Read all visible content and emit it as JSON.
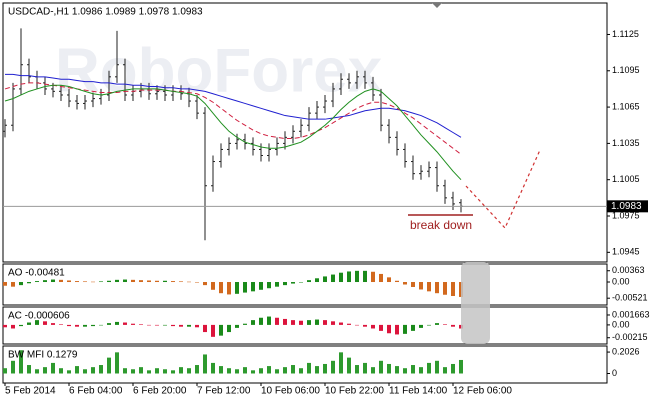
{
  "chart_data": [
    {
      "type": "ohlc",
      "title": "USDCAD-,H1 1.0986 1.0989 1.0978 1.0983",
      "watermark": "RoboForex",
      "annotation": "break down",
      "color": "#222222",
      "categories": [
        "5 Feb 2014",
        null,
        null,
        null,
        null,
        null,
        null,
        null,
        "6 Feb 04:00",
        null,
        null,
        null,
        null,
        null,
        null,
        null,
        "6 Feb 20:00",
        null,
        null,
        null,
        null,
        null,
        null,
        null,
        "7 Feb 12:00",
        null,
        null,
        null,
        null,
        null,
        null,
        null,
        "10 Feb 06:00",
        null,
        null,
        null,
        null,
        null,
        null,
        null,
        "10 Feb 22:00",
        null,
        null,
        null,
        null,
        null,
        null,
        null,
        "11 Feb 14:00",
        null,
        null,
        null,
        null,
        null,
        null,
        null,
        "12 Feb 06:00",
        null
      ],
      "open": [
        1.1045,
        1.105,
        1.108,
        1.11,
        1.109,
        1.1085,
        1.108,
        1.1078,
        1.1075,
        1.107,
        1.1068,
        1.107,
        1.1072,
        1.1075,
        1.109,
        1.11,
        1.1075,
        1.1078,
        1.108,
        1.1076,
        1.1078,
        1.1075,
        1.1078,
        1.1076,
        1.107,
        1.106,
        1.1,
        1.102,
        1.103,
        1.1035,
        1.1038,
        1.1035,
        1.103,
        1.1025,
        1.103,
        1.1035,
        1.104,
        1.1045,
        1.105,
        1.106,
        1.1065,
        1.107,
        1.108,
        1.1088,
        1.1085,
        1.109,
        1.1085,
        1.1075,
        1.105,
        1.104,
        1.103,
        1.102,
        1.101,
        1.1012,
        1.1015,
        1.1,
        1.099,
        1.0986
      ],
      "high": [
        1.1055,
        1.1085,
        1.113,
        1.1105,
        1.1095,
        1.109,
        1.1085,
        1.1083,
        1.108,
        1.1075,
        1.1075,
        1.1077,
        1.108,
        1.1095,
        1.1128,
        1.1105,
        1.1083,
        1.1085,
        1.1085,
        1.1083,
        1.1083,
        1.1083,
        1.1083,
        1.1081,
        1.1075,
        1.1065,
        1.1025,
        1.1035,
        1.104,
        1.1043,
        1.1043,
        1.104,
        1.1035,
        1.1035,
        1.104,
        1.1045,
        1.105,
        1.1055,
        1.1065,
        1.107,
        1.1075,
        1.1085,
        1.1093,
        1.1093,
        1.1095,
        1.1095,
        1.109,
        1.108,
        1.1055,
        1.1045,
        1.1035,
        1.1025,
        1.1017,
        1.102,
        1.102,
        1.1005,
        1.0995,
        1.0989
      ],
      "low": [
        1.104,
        1.1045,
        1.1075,
        1.1085,
        1.108,
        1.1075,
        1.1073,
        1.107,
        1.1065,
        1.1063,
        1.1063,
        1.1065,
        1.1067,
        1.107,
        1.1085,
        1.107,
        1.107,
        1.1073,
        1.1071,
        1.1071,
        1.107,
        1.107,
        1.1071,
        1.1065,
        1.1055,
        1.0955,
        1.0995,
        1.1015,
        1.1025,
        1.103,
        1.103,
        1.1025,
        1.102,
        1.102,
        1.1025,
        1.103,
        1.1035,
        1.104,
        1.1045,
        1.1055,
        1.106,
        1.1065,
        1.1075,
        1.108,
        1.108,
        1.108,
        1.107,
        1.1045,
        1.1035,
        1.1025,
        1.1015,
        1.1005,
        1.1005,
        1.1007,
        1.0995,
        1.0985,
        1.098,
        1.0978
      ],
      "close": [
        1.105,
        1.108,
        1.11,
        1.109,
        1.1085,
        1.108,
        1.1078,
        1.1075,
        1.107,
        1.1068,
        1.107,
        1.1072,
        1.1075,
        1.109,
        1.11,
        1.1075,
        1.1078,
        1.108,
        1.1076,
        1.1078,
        1.1075,
        1.1078,
        1.1076,
        1.107,
        1.106,
        1.1,
        1.102,
        1.103,
        1.1035,
        1.1038,
        1.1035,
        1.103,
        1.1025,
        1.103,
        1.1035,
        1.104,
        1.1045,
        1.105,
        1.106,
        1.1065,
        1.107,
        1.108,
        1.1088,
        1.1085,
        1.109,
        1.1085,
        1.1075,
        1.105,
        1.104,
        1.103,
        1.102,
        1.101,
        1.1012,
        1.1015,
        1.1,
        1.099,
        1.0985,
        1.0983
      ],
      "moving_averages": [
        {
          "color": "#2020d0",
          "dashed": false,
          "values": [
            1.1092,
            1.1092,
            1.1091,
            1.1091,
            1.109,
            1.109,
            1.1089,
            1.1088,
            1.1088,
            1.1087,
            1.1086,
            1.1086,
            1.1085,
            1.1085,
            1.1084,
            1.1084,
            1.1083,
            1.1083,
            1.1082,
            1.1082,
            1.1081,
            1.1081,
            1.108,
            1.108,
            1.1079,
            1.1078,
            1.1076,
            1.1074,
            1.1072,
            1.107,
            1.1068,
            1.1066,
            1.1064,
            1.1062,
            1.106,
            1.1058,
            1.1057,
            1.1056,
            1.1055,
            1.1055,
            1.1055,
            1.1056,
            1.1057,
            1.1058,
            1.106,
            1.1062,
            1.1063,
            1.1064,
            1.1064,
            1.1063,
            1.1062,
            1.106,
            1.1058,
            1.1055,
            1.1052,
            1.1048,
            1.1044,
            1.104
          ]
        },
        {
          "color": "#d02040",
          "dashed": true,
          "values": [
            1.108,
            1.1082,
            1.1084,
            1.1085,
            1.1085,
            1.1084,
            1.1083,
            1.1082,
            1.1081,
            1.108,
            1.1079,
            1.1078,
            1.1077,
            1.1077,
            1.1077,
            1.1078,
            1.1078,
            1.1079,
            1.1079,
            1.1079,
            1.1079,
            1.1078,
            1.1078,
            1.1077,
            1.1076,
            1.1073,
            1.1069,
            1.1064,
            1.1059,
            1.1054,
            1.105,
            1.1046,
            1.1043,
            1.1041,
            1.104,
            1.1039,
            1.1039,
            1.104,
            1.1042,
            1.1045,
            1.1048,
            1.1052,
            1.1056,
            1.106,
            1.1064,
            1.1067,
            1.1069,
            1.1069,
            1.1067,
            1.1064,
            1.106,
            1.1056,
            1.1051,
            1.1046,
            1.1041,
            1.1036,
            1.1031,
            1.1026
          ]
        },
        {
          "color": "#209020",
          "dashed": false,
          "values": [
            1.107,
            1.1072,
            1.1075,
            1.1078,
            1.108,
            1.1082,
            1.1083,
            1.1083,
            1.1082,
            1.108,
            1.1078,
            1.1076,
            1.1075,
            1.1076,
            1.1078,
            1.1079,
            1.108,
            1.108,
            1.108,
            1.108,
            1.1079,
            1.1078,
            1.1077,
            1.1076,
            1.1074,
            1.1068,
            1.106,
            1.1052,
            1.1045,
            1.104,
            1.1036,
            1.1034,
            1.1032,
            1.1031,
            1.1031,
            1.1032,
            1.1034,
            1.1036,
            1.104,
            1.1045,
            1.105,
            1.1056,
            1.1063,
            1.1069,
            1.1074,
            1.1078,
            1.108,
            1.1078,
            1.1072,
            1.1066,
            1.1058,
            1.105,
            1.1042,
            1.1035,
            1.1028,
            1.102,
            1.1012,
            1.1005
          ]
        }
      ],
      "last_price": 1.0983,
      "ylim": [
        1.0937,
        1.1151
      ],
      "yticks": [
        1.1125,
        1.1095,
        1.1065,
        1.1035,
        1.1005,
        1.0975,
        1.0945
      ]
    },
    {
      "type": "histogram",
      "title": "AO -0.00481",
      "up_color": "#1a8a1a",
      "down_color": "#d2691e",
      "values": [
        -0.0012,
        -0.0015,
        -0.001,
        -0.0004,
        0.0003,
        0.0006,
        0.0008,
        0.0007,
        0.0005,
        0.0003,
        0.0002,
        0.0001,
        0.0002,
        0.0004,
        0.0007,
        0.0008,
        0.0007,
        0.0006,
        0.0005,
        0.0004,
        0.0004,
        0.0003,
        0.0002,
        0.0001,
        0.0,
        -0.001,
        -0.0025,
        -0.0036,
        -0.004,
        -0.0038,
        -0.0034,
        -0.003,
        -0.0025,
        -0.002,
        -0.0015,
        -0.001,
        -0.0005,
        0.0,
        0.0006,
        0.0012,
        0.0018,
        0.0024,
        0.003,
        0.0034,
        0.0036,
        0.0036,
        0.0033,
        0.0026,
        0.0015,
        0.0004,
        -0.0008,
        -0.0016,
        -0.0024,
        -0.003,
        -0.0036,
        -0.0041,
        -0.0045,
        -0.00481
      ],
      "ylim": [
        -0.0074,
        0.0058
      ],
      "yticks": [
        0.00363,
        {
          "value": 0,
          "label": "0.00"
        },
        -0.00521
      ]
    },
    {
      "type": "histogram",
      "title": "AC -0.000606",
      "up_color": "#1a8a1a",
      "down_color": "#dc143c",
      "values": [
        -0.0004,
        -0.0006,
        -0.0002,
        0.0004,
        0.0008,
        0.0006,
        0.0003,
        0.0001,
        -0.0002,
        -0.0003,
        -0.0003,
        -0.0002,
        0.0,
        0.0003,
        0.0005,
        0.0004,
        0.0002,
        0.0001,
        0.0,
        -0.0001,
        -0.0001,
        -0.0002,
        -0.0003,
        -0.0003,
        -0.0004,
        -0.0012,
        -0.002,
        -0.0018,
        -0.0012,
        -0.0005,
        0.0002,
        0.0008,
        0.0012,
        0.0014,
        0.0012,
        0.001,
        0.0008,
        0.0007,
        0.0008,
        0.0009,
        0.0008,
        0.0006,
        0.0004,
        0.0002,
        0.0,
        -0.0003,
        -0.0006,
        -0.001,
        -0.0014,
        -0.0016,
        -0.0015,
        -0.001,
        -0.0005,
        -0.0001,
        0.0003,
        0.0001,
        -0.0003,
        -0.000606
      ],
      "ylim": [
        -0.0032,
        0.003
      ],
      "yticks": [
        0.001663,
        {
          "value": 0,
          "label": "0.00"
        },
        -0.00215
      ]
    },
    {
      "type": "histogram",
      "title": "BW MFI 0.1279",
      "color": "#2e9a2e",
      "values": [
        0.05,
        0.12,
        0.22,
        0.08,
        0.04,
        0.06,
        0.1,
        0.05,
        0.03,
        0.07,
        0.04,
        0.06,
        0.08,
        0.15,
        0.2,
        0.05,
        0.04,
        0.06,
        0.03,
        0.05,
        0.04,
        0.03,
        0.06,
        0.05,
        0.08,
        0.18,
        0.1,
        0.07,
        0.05,
        0.04,
        0.06,
        0.03,
        0.05,
        0.07,
        0.04,
        0.06,
        0.08,
        0.05,
        0.1,
        0.07,
        0.09,
        0.12,
        0.2,
        0.15,
        0.08,
        0.1,
        0.06,
        0.12,
        0.09,
        0.07,
        0.05,
        0.08,
        0.06,
        0.1,
        0.12,
        0.06,
        0.09,
        0.1279
      ],
      "ylim": [
        -0.09,
        0.26
      ],
      "yticks": [
        0.2026,
        0
      ]
    }
  ]
}
